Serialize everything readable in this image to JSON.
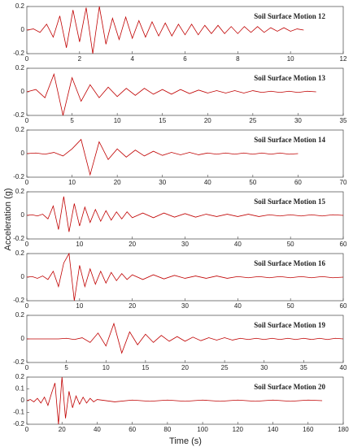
{
  "y_label": "Acceleration (g)",
  "x_label": "Time (s)",
  "chart_data": [
    {
      "type": "line",
      "title": "Soil Surface Motion 12",
      "x": [
        0,
        0.25,
        0.5,
        0.75,
        1,
        1.25,
        1.5,
        1.75,
        2,
        2.25,
        2.5,
        2.75,
        3,
        3.25,
        3.5,
        3.75,
        4,
        4.25,
        4.5,
        4.75,
        5,
        5.25,
        5.5,
        5.75,
        6,
        6.25,
        6.5,
        6.75,
        7,
        7.25,
        7.5,
        7.75,
        8,
        8.25,
        8.5,
        8.75,
        9,
        9.25,
        9.5,
        9.75,
        10,
        10.25,
        10.5
      ],
      "series": [
        {
          "color": "#c00000",
          "values": [
            0,
            0.01,
            -0.02,
            0.05,
            -0.06,
            0.12,
            -0.15,
            0.17,
            -0.1,
            0.19,
            -0.2,
            0.2,
            -0.12,
            0.1,
            -0.08,
            0.11,
            -0.07,
            0.08,
            -0.06,
            0.07,
            -0.05,
            0.06,
            -0.05,
            0.05,
            -0.04,
            0.05,
            -0.04,
            0.04,
            -0.03,
            0.04,
            -0.03,
            0.03,
            -0.03,
            0.03,
            -0.02,
            0.03,
            -0.02,
            0.02,
            -0.01,
            0.02,
            -0.01,
            0.01,
            0
          ]
        }
      ],
      "xlim": [
        0,
        12
      ],
      "xticks": [
        0,
        2,
        4,
        6,
        8,
        10,
        12
      ],
      "ylim": [
        -0.2,
        0.2
      ],
      "yticks": [
        -0.2,
        0,
        0.2
      ]
    },
    {
      "type": "line",
      "title": "Soil Surface Motion 13",
      "x": [
        0,
        1,
        2,
        3,
        4,
        5,
        6,
        7,
        8,
        9,
        10,
        11,
        12,
        13,
        14,
        15,
        16,
        17,
        18,
        19,
        20,
        21,
        22,
        23,
        24,
        25,
        26,
        27,
        28,
        29,
        30,
        31,
        32
      ],
      "series": [
        {
          "color": "#c00000",
          "values": [
            0,
            0.02,
            -0.05,
            0.15,
            -0.2,
            0.12,
            -0.08,
            0.06,
            -0.05,
            0.04,
            -0.04,
            0.03,
            -0.03,
            0.03,
            -0.02,
            0.02,
            -0.02,
            0.02,
            -0.015,
            0.015,
            -0.01,
            0.01,
            -0.01,
            0.01,
            -0.01,
            0.01,
            -0.005,
            0.005,
            -0.005,
            0.005,
            -0.005,
            0.005,
            0
          ]
        }
      ],
      "xlim": [
        0,
        35
      ],
      "xticks": [
        0,
        5,
        10,
        15,
        20,
        25,
        30,
        35
      ],
      "ylim": [
        -0.2,
        0.2
      ],
      "yticks": [
        -0.2,
        0,
        0.2
      ]
    },
    {
      "type": "line",
      "title": "Soil Surface Motion 14",
      "x": [
        0,
        2,
        4,
        6,
        8,
        10,
        12,
        14,
        16,
        18,
        20,
        22,
        24,
        26,
        28,
        30,
        32,
        34,
        36,
        38,
        40,
        42,
        44,
        46,
        48,
        50,
        52,
        54,
        56,
        58,
        60
      ],
      "series": [
        {
          "color": "#c00000",
          "values": [
            0,
            0.005,
            -0.005,
            0.01,
            -0.02,
            0.04,
            0.12,
            -0.18,
            0.1,
            -0.05,
            0.04,
            -0.03,
            0.03,
            -0.02,
            0.02,
            -0.015,
            0.01,
            -0.01,
            0.01,
            -0.01,
            0.005,
            -0.005,
            0.005,
            -0.005,
            0.005,
            -0.005,
            0.005,
            -0.005,
            0.005,
            -0.005,
            0
          ]
        }
      ],
      "xlim": [
        0,
        70
      ],
      "xticks": [
        0,
        10,
        20,
        30,
        40,
        50,
        60,
        70
      ],
      "ylim": [
        -0.2,
        0.2
      ],
      "yticks": [
        -0.2,
        0,
        0.2
      ]
    },
    {
      "type": "line",
      "title": "Soil Surface Motion 15",
      "x": [
        0,
        1,
        2,
        3,
        4,
        5,
        6,
        7,
        8,
        9,
        10,
        11,
        12,
        13,
        14,
        15,
        16,
        17,
        18,
        19,
        20,
        22,
        24,
        26,
        28,
        30,
        32,
        34,
        36,
        38,
        40,
        42,
        44,
        46,
        48,
        50,
        52,
        54,
        56,
        58,
        60
      ],
      "series": [
        {
          "color": "#c00000",
          "values": [
            0,
            0.005,
            -0.005,
            0.01,
            -0.03,
            0.08,
            -0.12,
            0.16,
            -0.14,
            0.1,
            -0.09,
            0.07,
            -0.06,
            0.05,
            -0.05,
            0.04,
            -0.04,
            0.03,
            -0.03,
            0.03,
            -0.02,
            0.02,
            -0.02,
            0.02,
            -0.015,
            0.015,
            -0.015,
            0.01,
            -0.01,
            0.01,
            -0.01,
            0.01,
            -0.01,
            0.005,
            -0.005,
            0.005,
            -0.005,
            0.005,
            -0.005,
            0.005,
            0
          ]
        }
      ],
      "xlim": [
        0,
        60
      ],
      "xticks": [
        0,
        10,
        20,
        30,
        40,
        50,
        60
      ],
      "ylim": [
        -0.2,
        0.2
      ],
      "yticks": [
        -0.2,
        0,
        0.2
      ]
    },
    {
      "type": "line",
      "title": "Soil Surface Motion 16",
      "x": [
        0,
        1,
        2,
        3,
        4,
        5,
        6,
        7,
        8,
        9,
        10,
        11,
        12,
        13,
        14,
        15,
        16,
        17,
        18,
        19,
        20,
        22,
        24,
        26,
        28,
        30,
        32,
        34,
        36,
        38,
        40,
        42,
        44,
        46,
        48,
        50,
        52,
        54,
        56,
        58,
        60
      ],
      "series": [
        {
          "color": "#c00000",
          "values": [
            0,
            0.005,
            -0.01,
            0.01,
            -0.02,
            0.05,
            -0.08,
            0.12,
            0.2,
            -0.2,
            0.1,
            -0.08,
            0.07,
            -0.06,
            0.05,
            -0.05,
            0.04,
            -0.03,
            0.03,
            -0.02,
            0.02,
            -0.02,
            0.02,
            -0.015,
            0.015,
            -0.01,
            0.01,
            -0.01,
            0.01,
            -0.01,
            0.005,
            -0.005,
            0.005,
            -0.005,
            0.005,
            -0.005,
            0.005,
            -0.005,
            0.005,
            -0.005,
            0
          ]
        }
      ],
      "xlim": [
        0,
        60
      ],
      "xticks": [
        0,
        10,
        20,
        30,
        40,
        50,
        60
      ],
      "ylim": [
        -0.2,
        0.2
      ],
      "yticks": [
        -0.2,
        0,
        0.2
      ]
    },
    {
      "type": "line",
      "title": "Soil Surface Motion 19",
      "x": [
        0,
        1,
        2,
        3,
        4,
        5,
        6,
        7,
        8,
        9,
        10,
        11,
        12,
        13,
        14,
        15,
        16,
        17,
        18,
        19,
        20,
        21,
        22,
        23,
        24,
        25,
        26,
        27,
        28,
        29,
        30,
        31,
        32,
        33,
        34,
        35,
        36,
        37,
        38,
        39,
        40
      ],
      "series": [
        {
          "color": "#c00000",
          "values": [
            0,
            0,
            0,
            0,
            0,
            0.005,
            -0.005,
            0.01,
            -0.03,
            0.05,
            -0.06,
            0.13,
            -0.12,
            0.06,
            -0.05,
            0.04,
            -0.03,
            0.03,
            -0.02,
            0.02,
            -0.02,
            0.015,
            -0.015,
            0.01,
            -0.01,
            0.01,
            -0.01,
            0.005,
            -0.005,
            0.005,
            -0.005,
            0.005,
            -0.005,
            0.005,
            -0.005,
            0.005,
            -0.005,
            0.005,
            -0.005,
            0.005,
            0
          ]
        }
      ],
      "xlim": [
        0,
        40
      ],
      "xticks": [
        0,
        5,
        10,
        15,
        20,
        25,
        30,
        35,
        40
      ],
      "ylim": [
        -0.2,
        0.2
      ],
      "yticks": [
        -0.2,
        0,
        0.2
      ]
    },
    {
      "type": "line",
      "title": "Soil Surface Motion 20",
      "x": [
        0,
        2,
        4,
        6,
        8,
        10,
        12,
        14,
        16,
        18,
        20,
        22,
        24,
        26,
        28,
        30,
        32,
        34,
        36,
        38,
        40,
        50,
        60,
        70,
        80,
        90,
        100,
        110,
        120,
        130,
        140,
        150,
        160,
        168
      ],
      "series": [
        {
          "color": "#c00000",
          "values": [
            0,
            0.01,
            -0.01,
            0.02,
            -0.02,
            0.03,
            -0.04,
            0.06,
            0.15,
            -0.2,
            0.2,
            -0.15,
            0.08,
            -0.06,
            0.04,
            -0.03,
            0.03,
            -0.02,
            0.02,
            -0.01,
            0.01,
            -0.01,
            0.005,
            -0.005,
            0.005,
            -0.005,
            0.005,
            -0.005,
            0.005,
            -0.005,
            0.005,
            -0.005,
            0.005,
            0
          ]
        }
      ],
      "xlim": [
        0,
        180
      ],
      "xticks": [
        0,
        20,
        40,
        60,
        80,
        100,
        120,
        140,
        160,
        180
      ],
      "ylim": [
        -0.2,
        0.2
      ],
      "yticks": [
        -0.2,
        -0.1,
        0,
        0.1,
        0.2
      ]
    }
  ]
}
